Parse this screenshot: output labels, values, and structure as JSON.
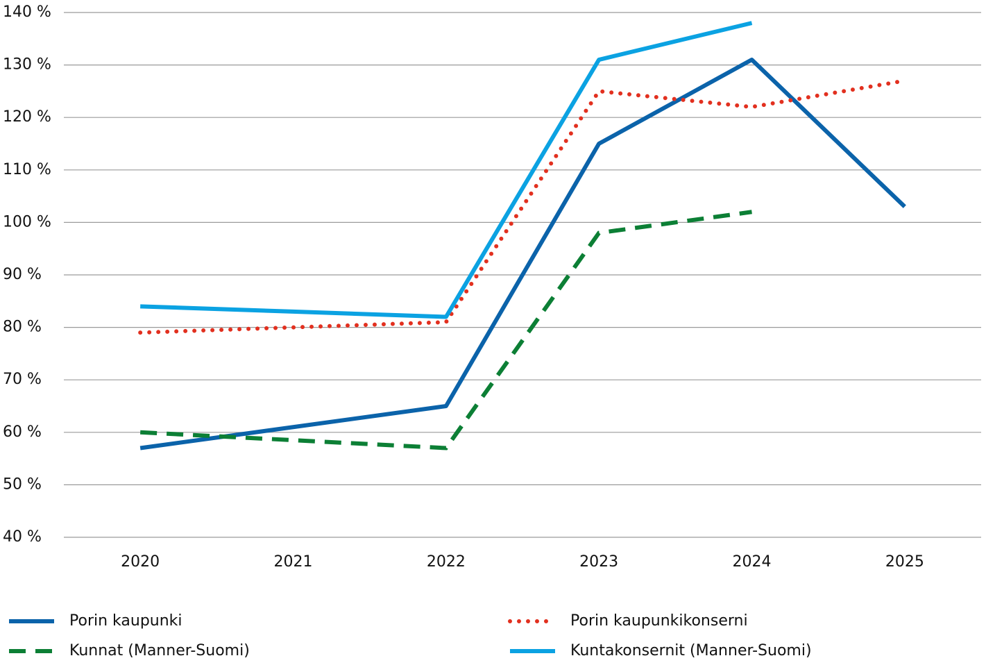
{
  "chart_data": {
    "type": "line",
    "categories": [
      "2020",
      "2021",
      "2022",
      "2023",
      "2024",
      "2025"
    ],
    "series": [
      {
        "name": "Porin kaupunki",
        "color": "#0b63aa",
        "style": "solid",
        "values": [
          57,
          61,
          65,
          115,
          131,
          103
        ]
      },
      {
        "name": "Porin kaupunkikonserni",
        "color": "#e2301f",
        "style": "dotted",
        "values": [
          79,
          80,
          81,
          125,
          122,
          127
        ]
      },
      {
        "name": "Kunnat (Manner-Suomi)",
        "color": "#0c7f35",
        "style": "dashed",
        "values": [
          60,
          58.5,
          57,
          98,
          102,
          null
        ]
      },
      {
        "name": "Kuntakonsernit (Manner-Suomi)",
        "color": "#0ba2e2",
        "style": "solid",
        "values": [
          84,
          83,
          82,
          131,
          138,
          null
        ]
      }
    ],
    "ylim": [
      40,
      140
    ],
    "yticks": [
      {
        "value": 40,
        "label": "40 %"
      },
      {
        "value": 50,
        "label": "50 %"
      },
      {
        "value": 60,
        "label": "60 %"
      },
      {
        "value": 70,
        "label": "70 %"
      },
      {
        "value": 80,
        "label": "80 %"
      },
      {
        "value": 90,
        "label": "90 %"
      },
      {
        "value": 100,
        "label": "100 %"
      },
      {
        "value": 110,
        "label": "110 %"
      },
      {
        "value": 120,
        "label": "120 %"
      },
      {
        "value": 130,
        "label": "130 %"
      },
      {
        "value": 140,
        "label": "140 %"
      }
    ],
    "grid": true
  }
}
